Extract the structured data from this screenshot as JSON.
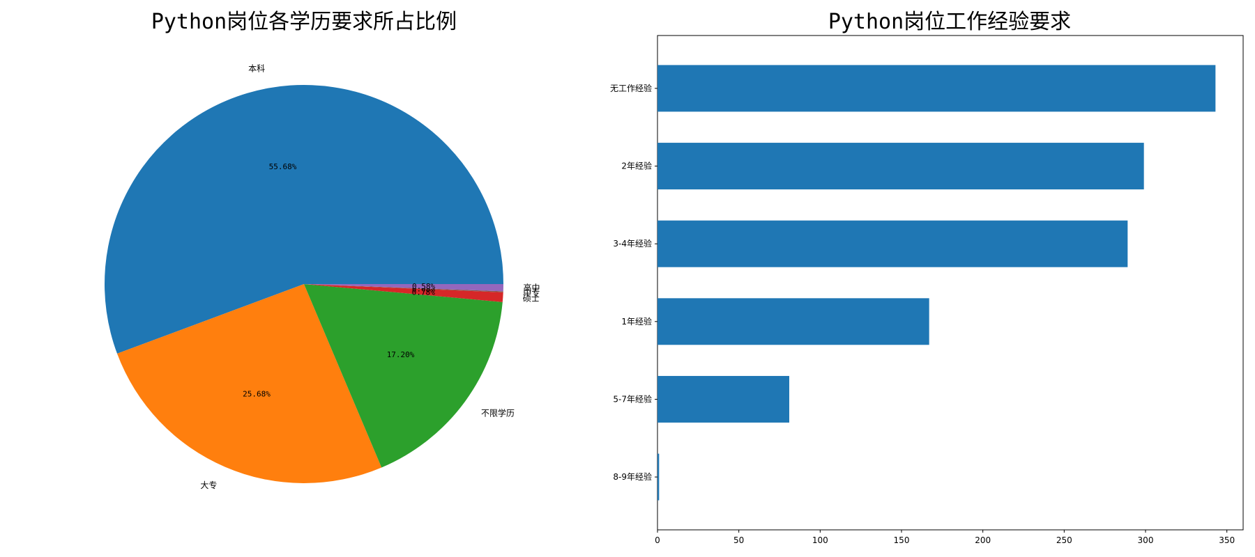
{
  "chart_data": [
    {
      "type": "pie",
      "title": "Python岗位各学历要求所占比例",
      "labels": [
        "本科",
        "大专",
        "不限学历",
        "硕士",
        "中专",
        "高中"
      ],
      "values": [
        55.68,
        25.68,
        17.2,
        0.78,
        0.08,
        0.58
      ],
      "value_labels": [
        "55.68%",
        "25.68%",
        "17.20%",
        "0.78%",
        "0.08%",
        "0.58%"
      ],
      "colors": [
        "#1f77b4",
        "#ff7f0e",
        "#2ca02c",
        "#d62728",
        "#8c564b",
        "#9467bd"
      ]
    },
    {
      "type": "bar",
      "orientation": "horizontal",
      "title": "Python岗位工作经验要求",
      "categories": [
        "无工作经验",
        "2年经验",
        "3-4年经验",
        "1年经验",
        "5-7年经验",
        "8-9年经验"
      ],
      "values": [
        343,
        299,
        289,
        167,
        81,
        1
      ],
      "xlim": [
        0,
        360
      ],
      "xticks": [
        0,
        50,
        100,
        150,
        200,
        250,
        300,
        350
      ],
      "color": "#1f77b4"
    }
  ]
}
